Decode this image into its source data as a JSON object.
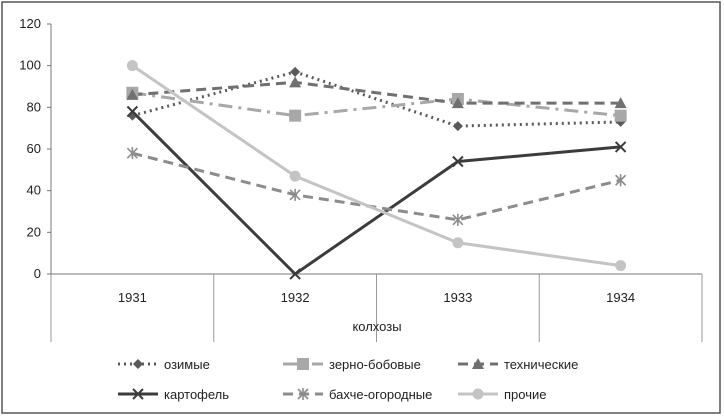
{
  "chart_data": {
    "type": "line",
    "title": "",
    "xlabel": "колхозы",
    "ylabel": "",
    "x": [
      "1931",
      "1932",
      "1933",
      "1934"
    ],
    "ylim": [
      0,
      120
    ],
    "yticks": [
      0,
      20,
      40,
      60,
      80,
      100,
      120
    ],
    "grid": false,
    "legend_position": "bottom",
    "series": [
      {
        "name": "озимые",
        "values": [
          76,
          97,
          71,
          73
        ],
        "color": "#5a5a5a",
        "dash": "dotted",
        "marker": "diamond"
      },
      {
        "name": "зерно-бобовые",
        "values": [
          87,
          76,
          84,
          76
        ],
        "color": "#a8a8a8",
        "dash": "dashdot",
        "marker": "square"
      },
      {
        "name": "технические",
        "values": [
          86,
          92,
          82,
          82
        ],
        "color": "#707070",
        "dash": "dashed",
        "marker": "triangle"
      },
      {
        "name": "картофель",
        "values": [
          78,
          0,
          54,
          61
        ],
        "color": "#3c3c3c",
        "dash": "solid",
        "marker": "x"
      },
      {
        "name": "бахче-огородные",
        "values": [
          58,
          38,
          26,
          45
        ],
        "color": "#8c8c8c",
        "dash": "dashed",
        "marker": "star"
      },
      {
        "name": "прочие",
        "values": [
          100,
          47,
          15,
          4
        ],
        "color": "#c4c4c4",
        "dash": "solid",
        "marker": "circle"
      }
    ]
  }
}
